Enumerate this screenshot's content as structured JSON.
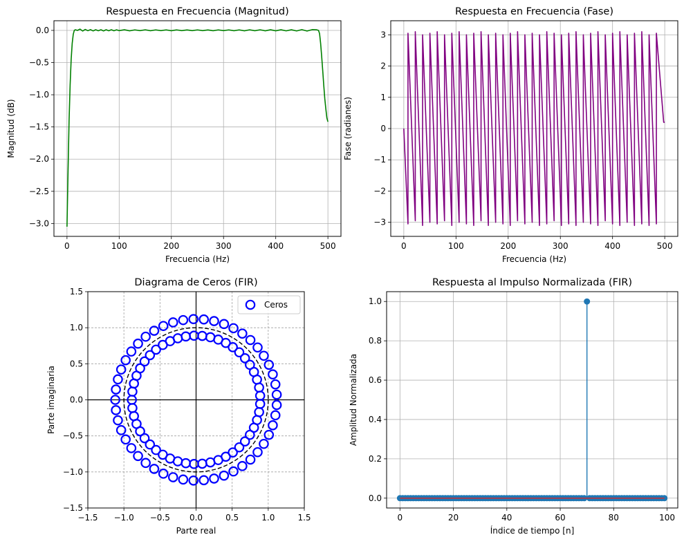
{
  "chart_data": [
    {
      "type": "line",
      "title": "Respuesta en Frecuencia (Magnitud)",
      "xlabel": "Frecuencia (Hz)",
      "ylabel": "Magnitud (dB)",
      "xlim": [
        -25,
        525
      ],
      "ylim": [
        -3.2,
        0.15
      ],
      "xticks": [
        0,
        100,
        200,
        300,
        400,
        500
      ],
      "yticks": [
        -3.0,
        -2.5,
        -2.0,
        -1.5,
        -1.0,
        -0.5,
        0.0
      ],
      "ytick_labels": [
        "−3.0",
        "−2.5",
        "−2.0",
        "−1.5",
        "−1.0",
        "−0.5",
        "0.0"
      ],
      "grid": true,
      "color": "#008000",
      "x": [
        0,
        2,
        4,
        6,
        8,
        10,
        12,
        14,
        16,
        18,
        20,
        25,
        30,
        35,
        40,
        45,
        50,
        55,
        60,
        65,
        70,
        75,
        80,
        85,
        90,
        95,
        100,
        110,
        120,
        130,
        140,
        150,
        160,
        170,
        180,
        190,
        200,
        210,
        220,
        230,
        240,
        250,
        260,
        270,
        280,
        290,
        300,
        310,
        320,
        330,
        340,
        350,
        360,
        370,
        380,
        390,
        400,
        410,
        420,
        430,
        440,
        450,
        460,
        470,
        478,
        482,
        484,
        486,
        488,
        490,
        492,
        494,
        496,
        498,
        500
      ],
      "y": [
        -3.05,
        -2.2,
        -1.4,
        -0.85,
        -0.45,
        -0.2,
        -0.06,
        0.0,
        0.01,
        0.005,
        0.0,
        0.02,
        -0.01,
        0.015,
        -0.005,
        0.012,
        -0.008,
        0.01,
        -0.005,
        0.01,
        -0.008,
        0.01,
        -0.006,
        0.01,
        -0.006,
        0.009,
        -0.004,
        0.01,
        -0.006,
        0.008,
        -0.004,
        0.009,
        -0.005,
        0.008,
        -0.004,
        0.008,
        -0.005,
        0.008,
        -0.004,
        0.007,
        -0.004,
        0.008,
        -0.004,
        0.007,
        -0.005,
        0.008,
        -0.004,
        0.008,
        -0.005,
        0.008,
        -0.006,
        0.009,
        -0.005,
        0.009,
        -0.006,
        0.01,
        -0.006,
        0.01,
        -0.007,
        0.01,
        -0.008,
        0.012,
        -0.01,
        0.012,
        0.01,
        0.0,
        -0.05,
        -0.2,
        -0.4,
        -0.62,
        -0.85,
        -1.06,
        -1.22,
        -1.36,
        -1.42
      ]
    },
    {
      "type": "line",
      "title": "Respuesta en Frecuencia (Fase)",
      "xlabel": "Frecuencia (Hz)",
      "ylabel": "Fase (radianes)",
      "xlim": [
        -25,
        525
      ],
      "ylim": [
        -3.45,
        3.45
      ],
      "xticks": [
        0,
        100,
        200,
        300,
        400,
        500
      ],
      "yticks": [
        -3,
        -2,
        -1,
        0,
        1,
        2,
        3
      ],
      "ytick_labels": [
        "−3",
        "−2",
        "−1",
        "0",
        "1",
        "2",
        "3"
      ],
      "grid": true,
      "color": "#800080",
      "x": [
        0,
        8,
        8,
        22,
        22,
        36,
        36,
        50,
        50,
        64,
        64,
        78,
        78,
        92,
        92,
        106,
        106,
        120,
        120,
        134,
        134,
        148,
        148,
        162,
        162,
        176,
        176,
        190,
        190,
        204,
        204,
        218,
        218,
        232,
        232,
        246,
        246,
        260,
        260,
        274,
        274,
        288,
        288,
        302,
        302,
        316,
        316,
        330,
        330,
        344,
        344,
        358,
        358,
        372,
        372,
        386,
        386,
        400,
        400,
        414,
        414,
        428,
        428,
        442,
        442,
        456,
        456,
        470,
        470,
        484,
        484,
        498,
        500
      ],
      "y": [
        0.0,
        -3.05,
        3.05,
        -2.95,
        3.1,
        -3.1,
        3.0,
        -3.0,
        3.05,
        -3.05,
        3.1,
        -2.95,
        3.0,
        -3.1,
        3.05,
        -3.0,
        3.1,
        -3.05,
        3.0,
        -3.1,
        3.05,
        -2.95,
        3.1,
        -3.1,
        3.0,
        -3.0,
        3.05,
        -3.05,
        3.0,
        -3.1,
        3.05,
        -2.95,
        3.1,
        -3.05,
        3.0,
        -3.0,
        3.05,
        -3.1,
        3.0,
        -3.05,
        3.1,
        -2.95,
        3.05,
        -3.1,
        3.0,
        -3.05,
        3.05,
        -3.1,
        3.1,
        -3.0,
        3.0,
        -3.05,
        3.05,
        -3.1,
        3.1,
        -2.95,
        3.0,
        -3.05,
        3.05,
        -3.1,
        3.1,
        -3.0,
        3.0,
        -3.1,
        3.05,
        -3.05,
        3.1,
        -3.1,
        3.0,
        -3.05,
        3.05,
        0.2,
        0.2
      ]
    },
    {
      "type": "scatter",
      "title": "Diagrama de Ceros (FIR)",
      "xlabel": "Parte real",
      "ylabel": "Parte imaginaria",
      "xlim": [
        -1.5,
        1.5
      ],
      "ylim": [
        -1.5,
        1.5
      ],
      "xticks": [
        -1.5,
        -1.0,
        -0.5,
        0.0,
        0.5,
        1.0,
        1.5
      ],
      "xtick_labels": [
        "−1.5",
        "−1.0",
        "−0.5",
        "0.0",
        "0.5",
        "1.0",
        "1.5"
      ],
      "yticks": [
        -1.5,
        -1.0,
        -0.5,
        0.0,
        0.5,
        1.0,
        1.5
      ],
      "ytick_labels": [
        "−1.5",
        "−1.0",
        "−0.5",
        "0.0",
        "0.5",
        "1.0",
        "1.5"
      ],
      "grid": "dashed",
      "unit_circle": "dashed",
      "legend": {
        "label": "Ceros",
        "placement": "top-right"
      },
      "color": "#0000ff",
      "zeros_rings": [
        {
          "radius": 1.12,
          "count": 49
        },
        {
          "radius": 0.89,
          "count": 49
        }
      ]
    },
    {
      "type": "stem",
      "title": "Respuesta al Impulso Normalizada (FIR)",
      "xlabel": "Índice de tiempo [n]",
      "ylabel": "Amplitud Normalizada",
      "xlim": [
        -5,
        104
      ],
      "ylim": [
        -0.05,
        1.05
      ],
      "xticks": [
        0,
        20,
        40,
        60,
        80,
        100
      ],
      "yticks": [
        0.0,
        0.2,
        0.4,
        0.6,
        0.8,
        1.0
      ],
      "ytick_labels": [
        "0.0",
        "0.2",
        "0.4",
        "0.6",
        "0.8",
        "1.0"
      ],
      "grid": true,
      "color": "#1f77b4",
      "baseline_color": "#d62728",
      "n_start": 0,
      "n_end": 99,
      "peak_index": 70,
      "peak_value": 1.0,
      "other_values": 0.0
    }
  ]
}
